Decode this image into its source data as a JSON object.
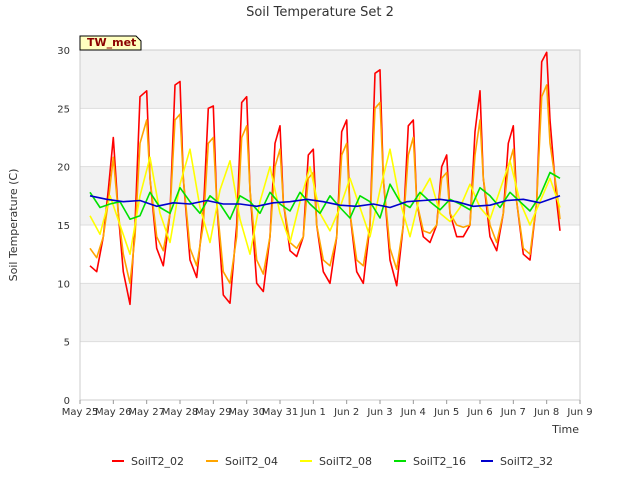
{
  "chart_data": {
    "type": "line",
    "title": "Soil Temperature Set 2",
    "xlabel": "Time",
    "ylabel": "Soil Temperature (C)",
    "ylim": [
      0,
      30
    ],
    "yticks": [
      0,
      5,
      10,
      15,
      20,
      25,
      30
    ],
    "xlim_days": [
      0,
      15
    ],
    "xticks": [
      "May 25",
      "May 26",
      "May 27",
      "May 28",
      "May 29",
      "May 30",
      "May 31",
      "Jun 1",
      "Jun 2",
      "Jun 3",
      "Jun 4",
      "Jun 5",
      "Jun 6",
      "Jun 7",
      "Jun 8",
      "Jun 9"
    ],
    "grid": "horizontal bands",
    "legend_position": "bottom",
    "annotation": "TW_met",
    "series": [
      {
        "name": "SoilT2_02",
        "color": "#ff0000",
        "x": [
          0.3,
          0.5,
          0.7,
          0.85,
          1.0,
          1.15,
          1.3,
          1.5,
          1.65,
          1.8,
          2.0,
          2.1,
          2.3,
          2.5,
          2.7,
          2.85,
          3.0,
          3.1,
          3.3,
          3.5,
          3.7,
          3.85,
          4.0,
          4.1,
          4.3,
          4.5,
          4.7,
          4.85,
          5.0,
          5.1,
          5.3,
          5.5,
          5.7,
          5.85,
          6.0,
          6.1,
          6.3,
          6.5,
          6.7,
          6.85,
          7.0,
          7.1,
          7.3,
          7.5,
          7.7,
          7.85,
          8.0,
          8.1,
          8.3,
          8.5,
          8.7,
          8.85,
          9.0,
          9.1,
          9.3,
          9.5,
          9.7,
          9.85,
          10.0,
          10.1,
          10.3,
          10.5,
          10.7,
          10.85,
          11.0,
          11.1,
          11.3,
          11.5,
          11.7,
          11.85,
          12.0,
          12.1,
          12.3,
          12.5,
          12.7,
          12.85,
          13.0,
          13.1,
          13.3,
          13.5,
          13.7,
          13.85,
          14.0,
          14.1,
          14.3,
          14.4
        ],
        "y": [
          11.5,
          11,
          14,
          18,
          22.5,
          16,
          11,
          8.2,
          15,
          26,
          26.5,
          19,
          13,
          11.5,
          16,
          27,
          27.3,
          19,
          12,
          10.5,
          16,
          25,
          25.2,
          17,
          9,
          8.3,
          15,
          25.5,
          26,
          18,
          10,
          9.3,
          14,
          22,
          23.5,
          17,
          12.8,
          12.3,
          14,
          21,
          21.5,
          15,
          11,
          10,
          14,
          23,
          24,
          16,
          11,
          10,
          15,
          28,
          28.3,
          19,
          12,
          9.8,
          15,
          23.5,
          24,
          17,
          14,
          13.5,
          15,
          20,
          21,
          16,
          14,
          14,
          15,
          23,
          26.5,
          19,
          14,
          12.8,
          16,
          22,
          23.5,
          17,
          12.5,
          12,
          17,
          29,
          29.8,
          24,
          17,
          14.5
        ]
      },
      {
        "name": "SoilT2_04",
        "color": "#ffa500",
        "x": [
          0.3,
          0.5,
          0.7,
          0.85,
          1.0,
          1.15,
          1.3,
          1.5,
          1.65,
          1.8,
          2.0,
          2.1,
          2.3,
          2.5,
          2.7,
          2.85,
          3.0,
          3.1,
          3.3,
          3.5,
          3.7,
          3.85,
          4.0,
          4.1,
          4.3,
          4.5,
          4.7,
          4.85,
          5.0,
          5.1,
          5.3,
          5.5,
          5.7,
          5.85,
          6.0,
          6.1,
          6.3,
          6.5,
          6.7,
          6.85,
          7.0,
          7.1,
          7.3,
          7.5,
          7.7,
          7.85,
          8.0,
          8.1,
          8.3,
          8.5,
          8.7,
          8.85,
          9.0,
          9.1,
          9.3,
          9.5,
          9.7,
          9.85,
          10.0,
          10.1,
          10.3,
          10.5,
          10.7,
          10.85,
          11.0,
          11.1,
          11.3,
          11.5,
          11.7,
          11.85,
          12.0,
          12.1,
          12.3,
          12.5,
          12.7,
          12.85,
          13.0,
          13.1,
          13.3,
          13.5,
          13.7,
          13.85,
          14.0,
          14.1,
          14.3,
          14.4
        ],
        "y": [
          13,
          12.2,
          14,
          17,
          20.8,
          16,
          12.5,
          10,
          14,
          22,
          24,
          19,
          14,
          12.8,
          16,
          24,
          24.5,
          19,
          13,
          11.5,
          15,
          22,
          22.5,
          17,
          11,
          10,
          14,
          22.5,
          23.5,
          18,
          12,
          10.8,
          14,
          20,
          21.5,
          17,
          13.5,
          13,
          14,
          19,
          19.5,
          15,
          12,
          11.5,
          14,
          21,
          22,
          16,
          12,
          11.5,
          15,
          25,
          25.5,
          19,
          13,
          11.2,
          15,
          21,
          22.5,
          17,
          14.5,
          14.3,
          15,
          19,
          19.5,
          16,
          15,
          14.8,
          15,
          21,
          24,
          19,
          15,
          13.5,
          16,
          20,
          21.5,
          17,
          13,
          12.5,
          17,
          26,
          27,
          22,
          18,
          15.5
        ]
      },
      {
        "name": "SoilT2_08",
        "color": "#ffff00",
        "x": [
          0.3,
          0.6,
          0.9,
          1.2,
          1.5,
          1.8,
          2.1,
          2.4,
          2.7,
          3.0,
          3.3,
          3.6,
          3.9,
          4.2,
          4.5,
          4.8,
          5.1,
          5.4,
          5.7,
          6.0,
          6.3,
          6.6,
          6.9,
          7.2,
          7.5,
          7.8,
          8.1,
          8.4,
          8.7,
          9.0,
          9.3,
          9.6,
          9.9,
          10.2,
          10.5,
          10.8,
          11.1,
          11.4,
          11.7,
          12.0,
          12.3,
          12.6,
          12.9,
          13.2,
          13.5,
          13.8,
          14.1,
          14.4
        ],
        "y": [
          15.8,
          14.2,
          17.5,
          15,
          12.5,
          17.5,
          20.8,
          16,
          13.5,
          18.5,
          21.5,
          16.5,
          13.5,
          18,
          20.5,
          15.5,
          12.5,
          17,
          20,
          16,
          13.5,
          17,
          20,
          16,
          14.5,
          16.5,
          19,
          16.5,
          14,
          18,
          21.5,
          17,
          14,
          17.5,
          19,
          16,
          15.3,
          16.5,
          18.5,
          16.5,
          15.5,
          18,
          20.5,
          17,
          15,
          17,
          19,
          16.5
        ]
      },
      {
        "name": "SoilT2_16",
        "color": "#00e000",
        "x": [
          0.3,
          0.6,
          0.9,
          1.2,
          1.5,
          1.8,
          2.1,
          2.4,
          2.7,
          3.0,
          3.3,
          3.6,
          3.9,
          4.2,
          4.5,
          4.8,
          5.1,
          5.4,
          5.7,
          6.0,
          6.3,
          6.6,
          6.9,
          7.2,
          7.5,
          7.8,
          8.1,
          8.4,
          8.7,
          9.0,
          9.3,
          9.6,
          9.9,
          10.2,
          10.5,
          10.8,
          11.1,
          11.4,
          11.7,
          12.0,
          12.3,
          12.6,
          12.9,
          13.2,
          13.5,
          13.8,
          14.1,
          14.4
        ],
        "y": [
          17.8,
          16.5,
          16.8,
          17,
          15.5,
          15.8,
          17.8,
          16.5,
          16,
          18.2,
          17,
          16,
          17.5,
          16.8,
          15.5,
          17.5,
          17,
          16,
          17.8,
          16.8,
          16.2,
          17.8,
          16.8,
          16,
          17.5,
          16.5,
          15.6,
          17.5,
          17,
          15.6,
          18.5,
          17,
          16.5,
          17.8,
          17,
          16.3,
          17.2,
          16.8,
          16.3,
          18.2,
          17.5,
          16.5,
          17.8,
          17,
          16.2,
          17.5,
          19.5,
          19
        ]
      },
      {
        "name": "SoilT2_32",
        "color": "#0000cc",
        "x": [
          0.3,
          0.8,
          1.3,
          1.8,
          2.3,
          2.8,
          3.3,
          3.8,
          4.3,
          4.8,
          5.3,
          5.8,
          6.3,
          6.8,
          7.3,
          7.8,
          8.3,
          8.8,
          9.3,
          9.8,
          10.3,
          10.8,
          11.3,
          11.8,
          12.3,
          12.8,
          13.3,
          13.8,
          14.4
        ],
        "y": [
          17.5,
          17.2,
          17,
          17.1,
          16.6,
          16.9,
          16.8,
          17.1,
          16.8,
          16.8,
          16.6,
          16.9,
          17,
          17.2,
          17,
          16.7,
          16.6,
          16.8,
          16.5,
          17,
          17.1,
          17.2,
          17,
          16.6,
          16.7,
          17.1,
          17.2,
          16.9,
          17.5
        ]
      }
    ]
  }
}
